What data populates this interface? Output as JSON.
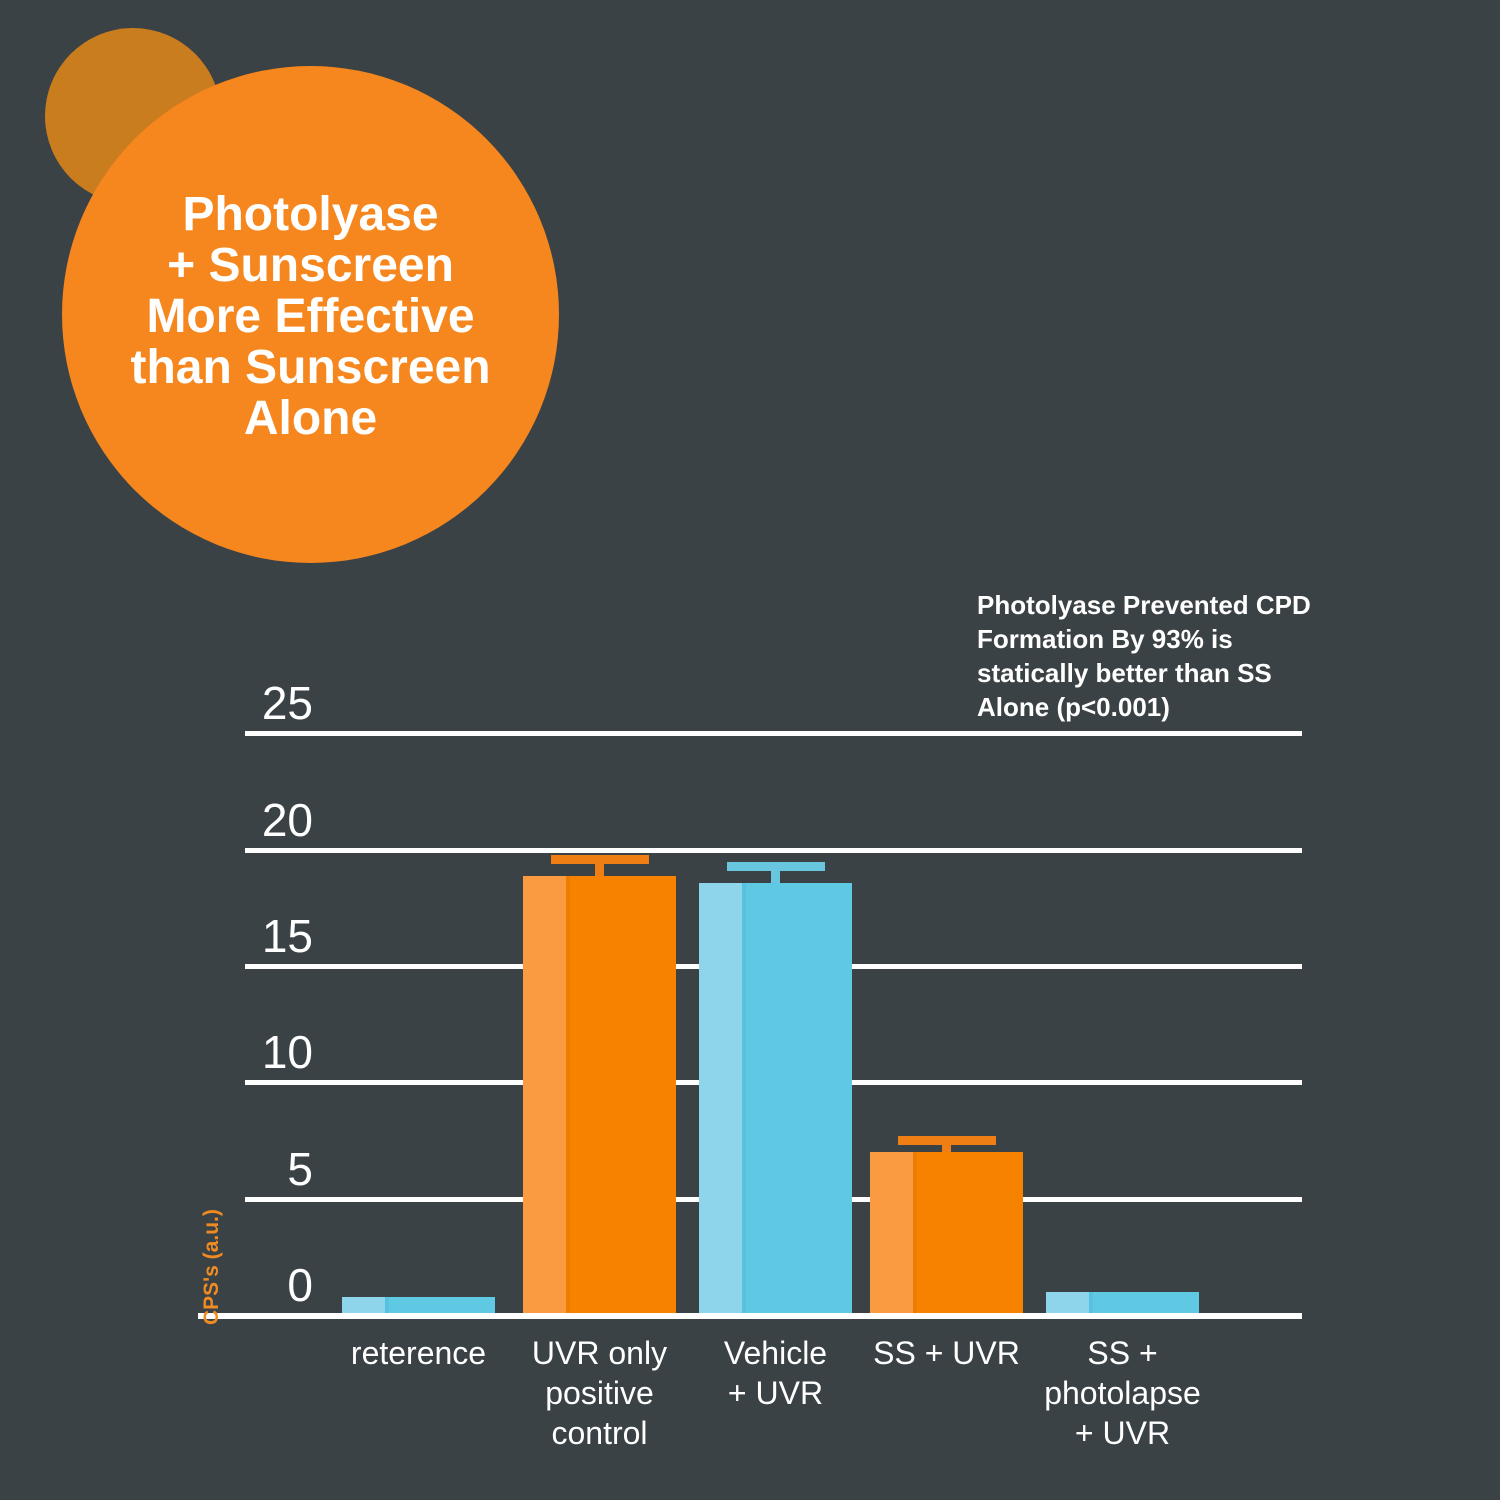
{
  "colors": {
    "background": "#3B4245",
    "badge_circle": "#F6861E",
    "decor_circle": "#C97D1E",
    "title_text": "#FFFFFF",
    "annotation_text": "#FFFFFF",
    "gridline": "#FFFFFF",
    "tick_text": "#FFFFFF",
    "xlabel_text": "#FFFFFF",
    "ylabel_text": "#EF8B22",
    "bar_orange": "#F78200",
    "bar_orange_light": "#FA9B41",
    "bar_orange_seam": "#ED7C00",
    "bar_blue": "#5FC9E4",
    "bar_blue_light": "#8ED5EC",
    "bar_blue_seam": "#55C3E0",
    "error_orange": "#EF7F15",
    "error_blue": "#68C6DF"
  },
  "badge": {
    "title_lines": [
      "Photolyase",
      "+ Sunscreen",
      "More Effective",
      "than Sunscreen",
      "Alone"
    ]
  },
  "annotation": {
    "lines": [
      "Photolyase Prevented CPD",
      "Formation By 93% is",
      "statically better than SS",
      "Alone (p<0.001)"
    ]
  },
  "chart_data": {
    "type": "bar",
    "title": "Photolyase + Sunscreen More Effective than Sunscreen Alone",
    "xlabel": "",
    "ylabel": "CPS's (a.u.)",
    "ylim": [
      0,
      25
    ],
    "yticks": [
      0,
      5,
      10,
      15,
      20,
      25
    ],
    "grid": true,
    "legend": false,
    "categories": [
      "reterence",
      "UVR only positive control",
      "Vehicle + UVR",
      "SS + UVR",
      "SS + photolapse + UVR"
    ],
    "category_label_lines": [
      [
        "reterence"
      ],
      [
        "UVR only",
        "positive",
        "control"
      ],
      [
        "Vehicle",
        "+ UVR"
      ],
      [
        "SS + UVR"
      ],
      [
        "SS +",
        "photolapse",
        "+ UVR"
      ]
    ],
    "series": [
      {
        "name": "CPS's (a.u.)",
        "values": [
          0.7,
          18.8,
          18.5,
          6.9,
          0.9
        ]
      }
    ],
    "error_bar_top": [
      null,
      19.7,
      19.4,
      7.6,
      null
    ],
    "bar_color_keys": [
      "blue",
      "orange",
      "blue",
      "orange",
      "blue"
    ],
    "annotation": "Photolyase Prevented CPD Formation By 93% is statically better than SS Alone (p<0.001)"
  }
}
